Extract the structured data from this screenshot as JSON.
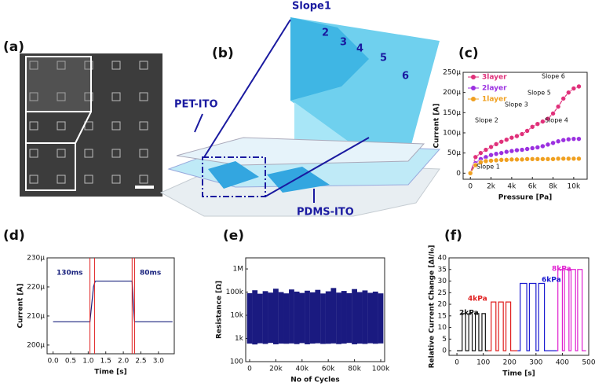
{
  "panel_a": {
    "label": "(a)"
  },
  "panel_b": {
    "label": "(b)",
    "texts": [
      "Slope1",
      "2",
      "3",
      "4",
      "5",
      "6",
      "PET-ITO",
      "PDMS-ITO"
    ]
  },
  "chart_data": [
    {
      "type": "line",
      "label": "(c)",
      "xlabel": "Pressure [Pa]",
      "ylabel": "Current [A]",
      "x": [
        0,
        500,
        1000,
        1500,
        2000,
        2500,
        3000,
        3500,
        4000,
        4500,
        5000,
        5500,
        6000,
        6500,
        7000,
        7500,
        8000,
        8500,
        9000,
        9500,
        10000,
        10500
      ],
      "series": [
        {
          "name": "3layer",
          "color": "#e0307a",
          "values": [
            0,
            4e-05,
            5e-05,
            5.8e-05,
            6.5e-05,
            7.2e-05,
            7.8e-05,
            8.3e-05,
            8.8e-05,
            9.2e-05,
            9.7e-05,
            0.000105,
            0.000115,
            0.000122,
            0.000128,
            0.000135,
            0.000148,
            0.000165,
            0.000185,
            0.0002,
            0.00021,
            0.000215
          ]
        },
        {
          "name": "2layer",
          "color": "#9b30e0",
          "values": [
            0,
            2.5e-05,
            3.5e-05,
            4e-05,
            4.5e-05,
            4.8e-05,
            5e-05,
            5.3e-05,
            5.5e-05,
            5.7e-05,
            5.8e-05,
            6e-05,
            6.2e-05,
            6.4e-05,
            6.7e-05,
            7.1e-05,
            7.5e-05,
            7.9e-05,
            8.2e-05,
            8.4e-05,
            8.5e-05,
            8.5e-05
          ]
        },
        {
          "name": "1layer",
          "color": "#f0a020",
          "values": [
            0,
            2e-05,
            2.7e-05,
            3e-05,
            3.1e-05,
            3.2e-05,
            3.3e-05,
            3.3e-05,
            3.4e-05,
            3.4e-05,
            3.4e-05,
            3.5e-05,
            3.5e-05,
            3.5e-05,
            3.5e-05,
            3.5e-05,
            3.5e-05,
            3.6e-05,
            3.6e-05,
            3.6e-05,
            3.6e-05,
            3.6e-05
          ]
        }
      ],
      "xlim": [
        -700,
        11300
      ],
      "xticks": [
        0,
        {
          "value": 2000,
          "label": "2k"
        },
        {
          "value": 4000,
          "label": "4k"
        },
        {
          "value": 6000,
          "label": "6k"
        },
        {
          "value": 8000,
          "label": "8k"
        },
        {
          "value": 10000,
          "label": "10k"
        }
      ],
      "ylim": [
        -1.5e-05,
        0.00025
      ],
      "yticks": [
        0,
        {
          "value": 5e-05,
          "label": "50μ"
        },
        {
          "value": 0.0001,
          "label": "100μ"
        },
        {
          "value": 0.00015,
          "label": "150μ"
        },
        {
          "value": 0.0002,
          "label": "200μ"
        },
        {
          "value": 0.00025,
          "label": "250μ"
        }
      ],
      "markers": true,
      "legend": "upper left",
      "annotations": [
        "Slope 1",
        "Slope 2",
        "Slope 3",
        "Slope 4",
        "Slope 5",
        "Slope 6"
      ]
    },
    {
      "type": "line",
      "label": "(d)",
      "xlabel": "Time [s]",
      "ylabel": "Current [A]",
      "x": [
        0,
        1.0,
        1.05,
        1.1,
        1.15,
        1.2,
        1.5,
        2.0,
        2.25,
        2.28,
        2.32,
        2.5,
        3.4
      ],
      "series": [
        {
          "color": "#1a237e",
          "values": [
            0.000208,
            0.000208,
            0.000208,
            0.000214,
            0.00022,
            0.000222,
            0.000222,
            0.000222,
            0.000222,
            0.000215,
            0.000208,
            0.000208,
            0.000208
          ]
        }
      ],
      "xlim": [
        -0.17,
        3.45
      ],
      "xticks": [
        {
          "value": 0,
          "label": "0.0"
        },
        0.5,
        {
          "value": 1,
          "label": "1.0"
        },
        1.5,
        {
          "value": 2,
          "label": "2.0"
        },
        2.5,
        {
          "value": 3,
          "label": "3.0"
        }
      ],
      "ylim": [
        0.000197,
        0.00023
      ],
      "yticks": [
        {
          "value": 0.0002,
          "label": "200μ"
        },
        {
          "value": 0.00021,
          "label": "210μ"
        },
        {
          "value": 0.00022,
          "label": "220μ"
        },
        {
          "value": 0.00023,
          "label": "230μ"
        }
      ],
      "vlines": [
        1.05,
        1.18,
        2.25,
        2.32
      ],
      "vline_color": "#e02020",
      "annotations": [
        "130ms",
        "80ms"
      ]
    },
    {
      "type": "range",
      "label": "(e)",
      "xlabel": "No of Cycles",
      "ylabel": "Resistance [Ω]",
      "color": "#1a1a80",
      "x": [
        0,
        4000,
        8000,
        12000,
        16000,
        20000,
        24000,
        28000,
        32000,
        36000,
        40000,
        44000,
        48000,
        52000,
        56000,
        60000,
        64000,
        68000,
        72000,
        76000,
        80000,
        84000,
        88000,
        92000,
        96000,
        100000
      ],
      "high": [
        90000,
        120000,
        85000,
        110000,
        95000,
        140000,
        100000,
        88000,
        130000,
        105000,
        92000,
        115000,
        98000,
        125000,
        87000,
        108000,
        150000,
        95000,
        112000,
        90000,
        135000,
        100000,
        118000,
        93000,
        105000,
        88000
      ],
      "low": [
        600,
        550,
        620,
        580,
        640,
        560,
        600,
        590,
        610,
        570,
        630,
        560,
        600,
        620,
        580,
        590,
        610,
        570,
        600,
        640,
        560,
        600,
        580,
        620,
        590,
        610
      ],
      "log": true,
      "xlim": [
        -3000,
        103000
      ],
      "xticks": [
        0,
        {
          "value": 20000,
          "label": "20k"
        },
        {
          "value": 40000,
          "label": "40k"
        },
        {
          "value": 60000,
          "label": "60k"
        },
        {
          "value": 80000,
          "label": "80k"
        },
        {
          "value": 100000,
          "label": "100k"
        }
      ],
      "ylim": [
        100,
        3000000
      ],
      "yticks": [
        100,
        {
          "value": 1000,
          "label": "1k"
        },
        {
          "value": 10000,
          "label": "10k"
        },
        {
          "value": 100000,
          "label": "100k"
        },
        {
          "value": 1000000,
          "label": "1M"
        }
      ]
    },
    {
      "type": "line",
      "label": "(f)",
      "xlabel": "Time [s]",
      "ylabel": "Relative Current Change [ΔI/I₀]",
      "series": [
        {
          "name": "2kPa",
          "color": "#111111",
          "x": [
            0,
            20,
            20,
            33,
            33,
            45,
            45,
            58,
            58,
            70,
            70,
            83,
            83,
            95,
            95,
            108,
            108,
            118
          ],
          "values": [
            0,
            0,
            16,
            16,
            0,
            0,
            16,
            16,
            0,
            0,
            16,
            16,
            0,
            0,
            16,
            16,
            0,
            0
          ]
        },
        {
          "name": "4kPa",
          "color": "#e02020",
          "x": [
            118,
            130,
            130,
            148,
            148,
            158,
            158,
            176,
            176,
            186,
            186,
            204,
            204,
            230
          ],
          "values": [
            0,
            0,
            21,
            21,
            0,
            0,
            21,
            21,
            0,
            0,
            21,
            21,
            0,
            0
          ]
        },
        {
          "name": "6kPa",
          "color": "#1a1ad0",
          "x": [
            230,
            240,
            240,
            265,
            265,
            275,
            275,
            300,
            300,
            310,
            310,
            332,
            332,
            380
          ],
          "values": [
            0,
            0,
            29,
            29,
            0,
            0,
            29,
            29,
            0,
            0,
            29,
            29,
            0,
            0
          ]
        },
        {
          "name": "8kPa",
          "color": "#e020d0",
          "x": [
            380,
            383,
            383,
            400,
            400,
            408,
            408,
            425,
            425,
            433,
            433,
            450,
            450,
            458,
            458,
            475,
            475,
            490
          ],
          "values": [
            0,
            0,
            35,
            35,
            0,
            0,
            35,
            35,
            0,
            0,
            35,
            35,
            0,
            0,
            35,
            35,
            0,
            0
          ]
        }
      ],
      "xlim": [
        -30,
        500
      ],
      "xticks": [
        0,
        100,
        200,
        300,
        400,
        500
      ],
      "ylim": [
        -2,
        40
      ],
      "yticks": [
        0,
        5,
        10,
        15,
        20,
        25,
        30,
        35,
        40
      ],
      "series_labels": true
    }
  ]
}
